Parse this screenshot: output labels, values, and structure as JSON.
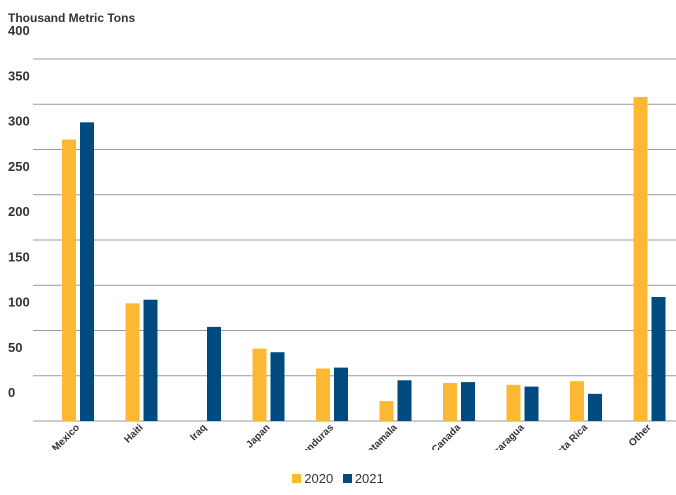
{
  "chart_data": {
    "type": "bar",
    "title": "",
    "ylabel": "Thousand Metric Tons",
    "xlabel": "",
    "ylim": [
      0,
      400
    ],
    "ytick_labels": [
      "400",
      "350",
      "300",
      "250",
      "200",
      "150",
      "100",
      "50",
      "0"
    ],
    "categories": [
      "Mexico",
      "Haiti",
      "Iraq",
      "Japan",
      "Honduras",
      "Guatamala",
      "Canada",
      "Nicaragua",
      "Costa Rica",
      "Other"
    ],
    "series": [
      {
        "name": "2020",
        "color": "#FDB833",
        "values": [
          311,
          130,
          0,
          80,
          58,
          22,
          42,
          40,
          44,
          358
        ]
      },
      {
        "name": "2021",
        "color": "#004A80",
        "values": [
          330,
          134,
          104,
          76,
          59,
          45,
          43,
          38,
          30,
          137
        ]
      }
    ],
    "grid": true,
    "legend_position": "bottom-center"
  }
}
